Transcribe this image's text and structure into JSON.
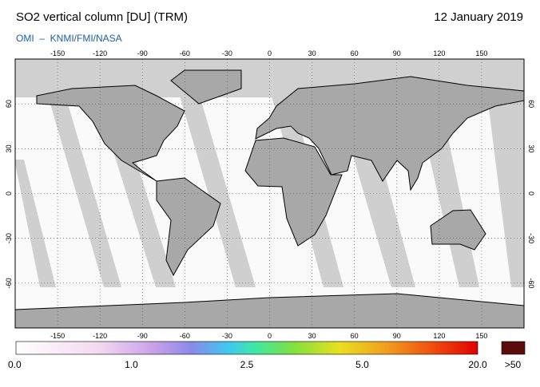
{
  "title": "SO2 vertical column [DU] (TRM)",
  "date": "12 January 2019",
  "credit": "OMI  –  KNMI/FMI/NASA",
  "lon_ticks": [
    -150,
    -120,
    -90,
    -60,
    -30,
    0,
    30,
    60,
    90,
    120,
    150
  ],
  "lat_ticks": [
    60,
    30,
    0,
    -30,
    -60
  ],
  "colorbar": {
    "labels": [
      "0.0",
      "1.0",
      "2.5",
      "5.0",
      "20.0"
    ],
    "overflow": ">50"
  }
}
